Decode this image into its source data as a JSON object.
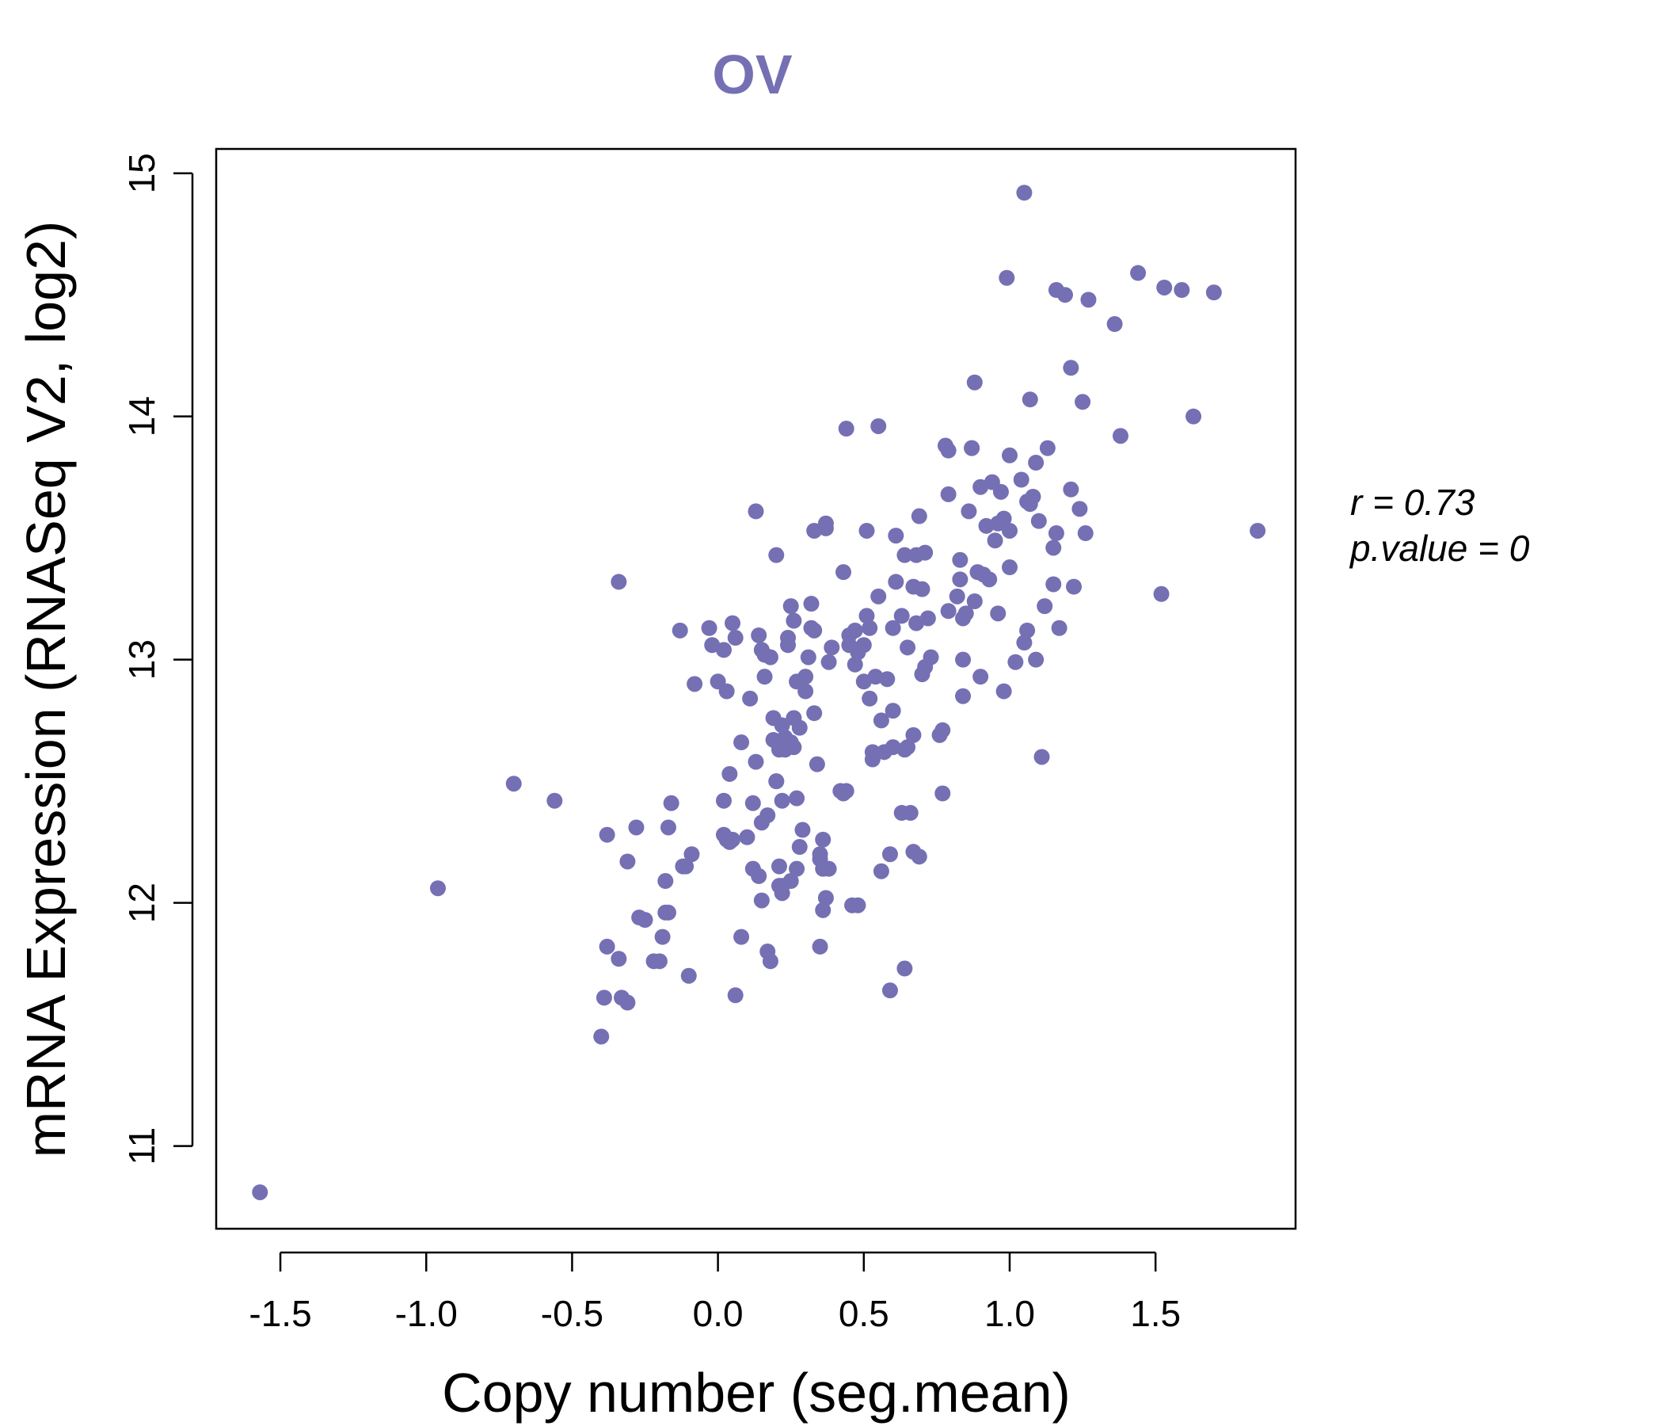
{
  "chart_data": {
    "type": "scatter",
    "title": "OV",
    "xlabel": "Copy number (seg.mean)",
    "ylabel": "mRNA Expression (RNASeq V2, log2)",
    "xlim": [
      -1.72,
      1.98
    ],
    "ylim": [
      10.66,
      15.1
    ],
    "xticks": [
      -1.5,
      -1.0,
      -0.5,
      0.0,
      0.5,
      1.0,
      1.5
    ],
    "xtick_labels": [
      "-1.5",
      "-1.0",
      "-0.5",
      "0.0",
      "0.5",
      "1.0",
      "1.5"
    ],
    "yticks": [
      11,
      12,
      13,
      14,
      15
    ],
    "ytick_labels": [
      "11",
      "12",
      "13",
      "14",
      "15"
    ],
    "grid": false,
    "colors": {
      "point": "#7570b3",
      "title": "#7570b3"
    },
    "stats": {
      "r_label": "r = 0.73",
      "p_label": "p.value = 0"
    },
    "x": [
      -1.57,
      -0.96,
      -0.7,
      -0.56,
      -0.4,
      -0.38,
      -0.39,
      -0.38,
      -0.34,
      -0.34,
      -0.33,
      -0.31,
      -0.31,
      -0.28,
      -0.27,
      -0.25,
      -0.22,
      -0.2,
      -0.19,
      -0.18,
      -0.18,
      -0.17,
      -0.17,
      -0.16,
      -0.13,
      -0.12,
      -0.11,
      -0.1,
      -0.09,
      -0.08,
      -0.03,
      -0.02,
      0,
      0.02,
      0.02,
      0.02,
      0.03,
      0.03,
      0.04,
      0.04,
      0.05,
      0.05,
      0.06,
      0.06,
      0.08,
      0.08,
      0.1,
      0.11,
      0.12,
      0.12,
      0.13,
      0.13,
      0.14,
      0.14,
      0.15,
      0.15,
      0.15,
      0.16,
      0.16,
      0.17,
      0.17,
      0.18,
      0.18,
      0.19,
      0.19,
      0.2,
      0.2,
      0.2,
      0.21,
      0.21,
      0.21,
      0.22,
      0.22,
      0.22,
      0.22,
      0.23,
      0.23,
      0.24,
      0.24,
      0.25,
      0.25,
      0.25,
      0.26,
      0.26,
      0.26,
      0.27,
      0.27,
      0.27,
      0.28,
      0.28,
      0.29,
      0.3,
      0.3,
      0.31,
      0.32,
      0.32,
      0.33,
      0.33,
      0.33,
      0.34,
      0.35,
      0.35,
      0.35,
      0.36,
      0.36,
      0.36,
      0.37,
      0.37,
      0.37,
      0.38,
      0.38,
      0.39,
      0.42,
      0.43,
      0.43,
      0.44,
      0.44,
      0.45,
      0.45,
      0.46,
      0.47,
      0.47,
      0.48,
      0.48,
      0.5,
      0.5,
      0.51,
      0.51,
      0.52,
      0.52,
      0.53,
      0.53,
      0.54,
      0.55,
      0.55,
      0.56,
      0.56,
      0.57,
      0.58,
      0.59,
      0.59,
      0.6,
      0.6,
      0.6,
      0.61,
      0.61,
      0.63,
      0.63,
      0.64,
      0.64,
      0.64,
      0.65,
      0.65,
      0.66,
      0.67,
      0.67,
      0.67,
      0.68,
      0.68,
      0.69,
      0.69,
      0.7,
      0.7,
      0.71,
      0.71,
      0.72,
      0.73,
      0.76,
      0.77,
      0.77,
      0.78,
      0.79,
      0.79,
      0.79,
      0.82,
      0.83,
      0.83,
      0.84,
      0.84,
      0.84,
      0.85,
      0.86,
      0.87,
      0.87,
      0.88,
      0.88,
      0.89,
      0.9,
      0.9,
      0.91,
      0.92,
      0.93,
      0.94,
      0.95,
      0.96,
      0.96,
      0.97,
      0.98,
      0.98,
      0.99,
      1,
      1,
      1,
      1.02,
      1.04,
      1.05,
      1.05,
      1.06,
      1.06,
      1.07,
      1.07,
      1.08,
      1.09,
      1.09,
      1.1,
      1.11,
      1.12,
      1.13,
      1.15,
      1.15,
      1.16,
      1.16,
      1.17,
      1.19,
      1.21,
      1.21,
      1.22,
      1.24,
      1.25,
      1.26,
      1.27,
      1.36,
      1.38,
      1.44,
      1.52,
      1.53,
      1.59,
      1.63,
      1.7,
      1.85
    ],
    "y": [
      10.81,
      12.06,
      12.49,
      12.42,
      11.45,
      11.82,
      11.61,
      12.28,
      11.77,
      13.32,
      11.61,
      12.17,
      11.59,
      12.31,
      11.94,
      11.93,
      11.76,
      11.76,
      11.86,
      11.96,
      12.09,
      11.96,
      12.31,
      12.41,
      13.12,
      12.15,
      12.15,
      11.7,
      12.2,
      12.9,
      13.13,
      13.06,
      12.91,
      13.04,
      12.42,
      12.28,
      12.26,
      12.87,
      12.53,
      12.25,
      13.15,
      12.26,
      11.62,
      13.09,
      12.66,
      11.86,
      12.27,
      12.84,
      12.41,
      12.14,
      13.61,
      12.58,
      13.1,
      12.11,
      13.04,
      12.33,
      12.01,
      13.02,
      12.93,
      12.36,
      11.8,
      11.76,
      13.01,
      12.76,
      12.67,
      12.5,
      12.5,
      13.43,
      12.63,
      12.15,
      12.07,
      12.73,
      12.42,
      12.04,
      12.07,
      12.68,
      12.63,
      13.06,
      13.09,
      12.66,
      13.22,
      12.09,
      13.16,
      12.64,
      12.76,
      12.91,
      12.43,
      12.14,
      12.72,
      12.23,
      12.3,
      12.93,
      12.87,
      13.01,
      13.13,
      13.23,
      13.12,
      12.78,
      13.53,
      12.57,
      11.82,
      12.2,
      12.18,
      12.14,
      12.26,
      11.97,
      13.56,
      12.02,
      13.54,
      12.99,
      12.14,
      13.05,
      12.46,
      12.45,
      13.36,
      13.95,
      12.46,
      13.06,
      13.1,
      11.99,
      13.12,
      12.98,
      11.99,
      13.03,
      13.06,
      12.91,
      13.53,
      13.18,
      13.13,
      12.84,
      12.59,
      12.62,
      12.93,
      13.96,
      13.26,
      12.13,
      12.75,
      12.62,
      12.92,
      11.64,
      12.2,
      13.13,
      12.64,
      12.79,
      13.32,
      13.51,
      12.37,
      13.18,
      13.43,
      12.63,
      11.73,
      13.05,
      12.64,
      12.37,
      12.21,
      12.69,
      13.3,
      13.15,
      13.43,
      13.59,
      12.19,
      13.29,
      12.94,
      12.97,
      13.44,
      13.17,
      13.01,
      12.69,
      12.71,
      12.45,
      13.88,
      13.86,
      13.68,
      13.2,
      13.26,
      13.33,
      13.41,
      12.85,
      13.0,
      13.17,
      13.19,
      13.61,
      13.87,
      13.87,
      14.14,
      13.24,
      13.36,
      13.71,
      12.93,
      13.35,
      13.55,
      13.33,
      13.73,
      13.49,
      13.56,
      13.19,
      13.69,
      12.87,
      13.58,
      14.57,
      13.84,
      13.53,
      13.38,
      12.99,
      13.74,
      13.07,
      14.92,
      13.65,
      13.12,
      14.07,
      13.64,
      13.67,
      13.81,
      13.0,
      13.57,
      12.6,
      13.22,
      13.87,
      13.46,
      13.31,
      14.52,
      13.52,
      13.13,
      14.5,
      13.7,
      14.2,
      13.3,
      13.62,
      14.06,
      13.52,
      14.48,
      14.38,
      13.92,
      14.59,
      13.27,
      14.53,
      14.52,
      14.0,
      14.51,
      13.53
    ]
  }
}
